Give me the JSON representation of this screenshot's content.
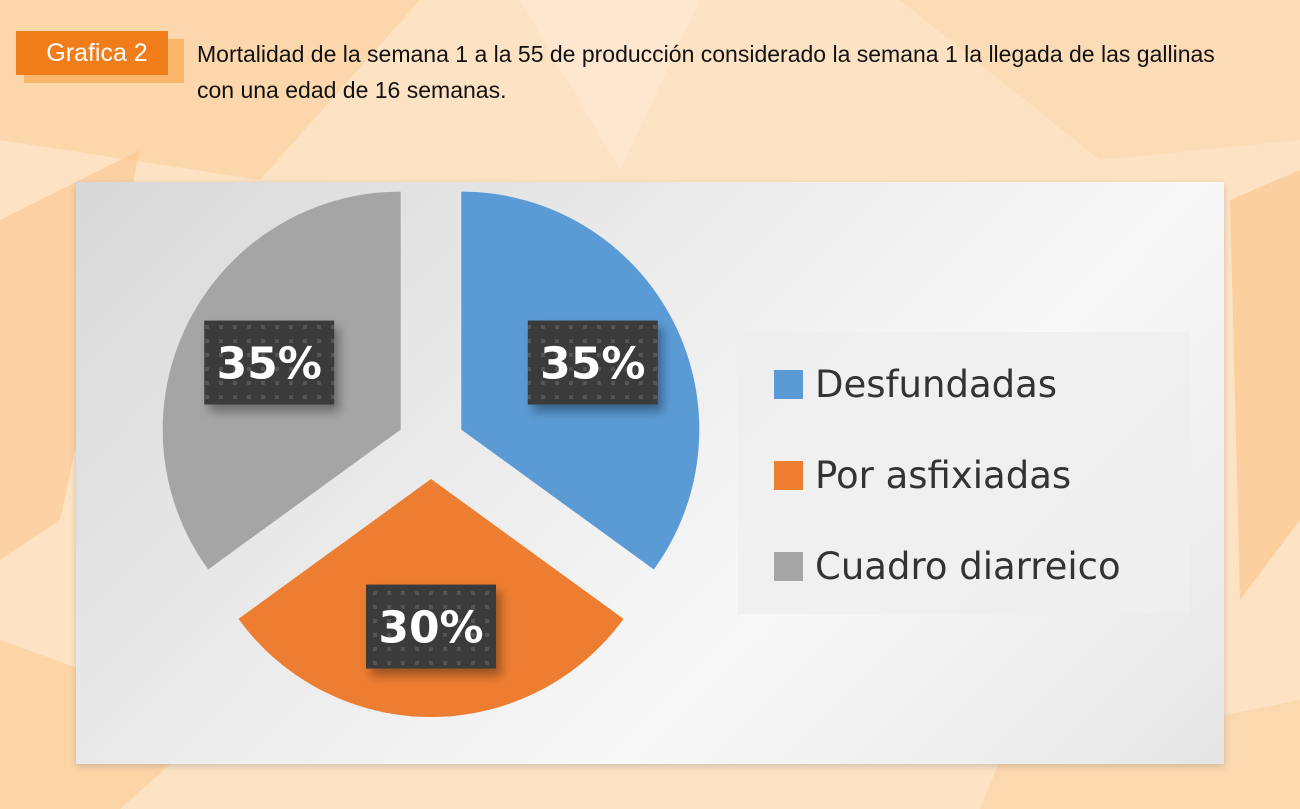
{
  "badge": {
    "label": "Grafica 2"
  },
  "heading": {
    "text": "Mortalidad de la semana 1 a la 55 de producción considerado la semana 1 la llegada de las gallinas con una edad de 16 semanas."
  },
  "colors": {
    "background": "#fde3c4",
    "accent": "#f07d1a",
    "desfundadas": "#5b9bd5",
    "por_asfixiadas": "#ed7d31",
    "cuadro_diarreico": "#a5a5a5",
    "data_label_bg": "#3b3b3b"
  },
  "chart_data": {
    "type": "pie",
    "title": "",
    "categories": [
      "Desfundadas",
      "Por asfixiadas",
      "Cuadro diarreico"
    ],
    "values": [
      35,
      30,
      35
    ],
    "data_labels": [
      "35%",
      "30%",
      "35%"
    ],
    "colors": [
      "#5b9bd5",
      "#ed7d31",
      "#a5a5a5"
    ],
    "start_angle_deg": 0,
    "direction": "clockwise",
    "exploded": true,
    "legend_position": "right"
  }
}
